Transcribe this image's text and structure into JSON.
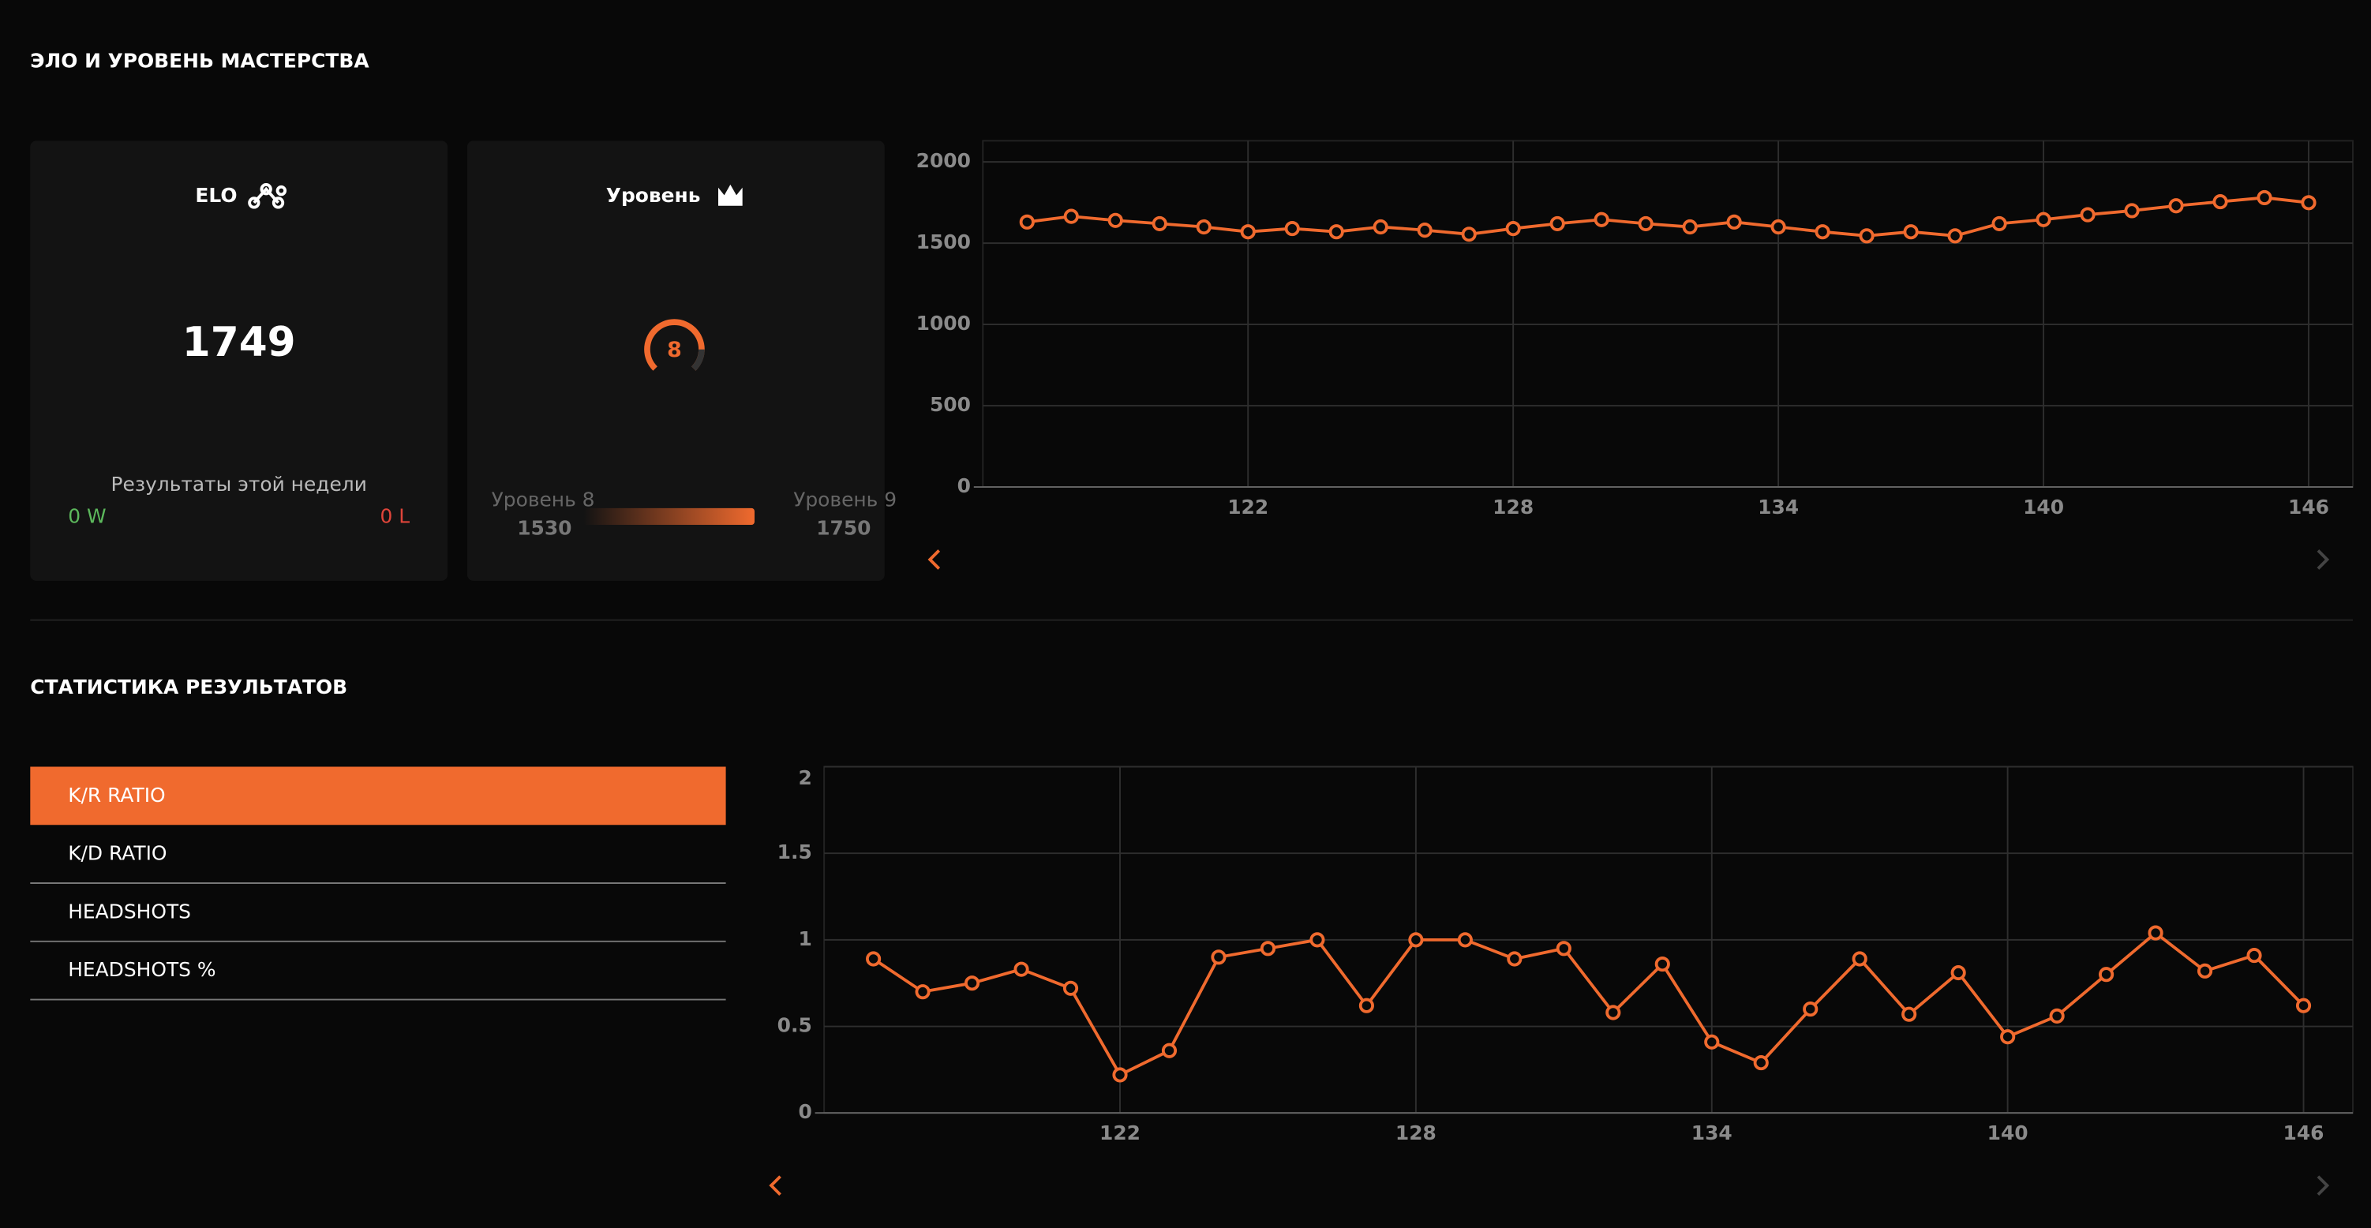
{
  "sections": [
    {
      "title": "ЭЛО И УРОВЕНЬ МАСТЕРСТВА"
    },
    {
      "title": "СТАТИСТИКА РЕЗУЛЬТАТОВ"
    }
  ],
  "elo_card": {
    "title": "ELO",
    "value": 1749,
    "caption": "Результаты этой недели",
    "wins": "0 W",
    "losses": "0 L"
  },
  "level_card": {
    "title": "Уровень",
    "level": 8,
    "from_label": "Уровень 8",
    "from_value": 1530,
    "to_label": "Уровень 9",
    "to_value": 1750
  },
  "tabs": [
    "K/R RATIO",
    "K/D RATIO",
    "HEADSHOTS",
    "HEADSHOTS %"
  ],
  "active_tab": 0,
  "chart_data": [
    {
      "type": "line",
      "color": "#f06a2e",
      "grid": true,
      "x": [
        117,
        118,
        119,
        120,
        121,
        122,
        123,
        124,
        125,
        126,
        127,
        128,
        129,
        130,
        131,
        132,
        133,
        134,
        135,
        136,
        137,
        138,
        139,
        140,
        141,
        142,
        143,
        144,
        145,
        146
      ],
      "values": [
        1630,
        1665,
        1640,
        1620,
        1600,
        1570,
        1590,
        1570,
        1600,
        1580,
        1555,
        1590,
        1620,
        1645,
        1620,
        1600,
        1630,
        1600,
        1570,
        1545,
        1570,
        1545,
        1620,
        1645,
        1675,
        1700,
        1730,
        1755,
        1780,
        1749
      ],
      "xlim": [
        116,
        147
      ],
      "ylim": [
        0,
        2130
      ],
      "xticks": [
        122,
        128,
        134,
        140,
        146
      ],
      "yticks": [
        0,
        500,
        1000,
        1500,
        2000
      ]
    },
    {
      "type": "line",
      "color": "#f06a2e",
      "grid": true,
      "x": [
        117,
        118,
        119,
        120,
        121,
        122,
        123,
        124,
        125,
        126,
        127,
        128,
        129,
        130,
        131,
        132,
        133,
        134,
        135,
        136,
        137,
        138,
        139,
        140,
        141,
        142,
        143,
        144,
        145,
        146
      ],
      "values": [
        0.89,
        0.7,
        0.75,
        0.83,
        0.72,
        0.22,
        0.36,
        0.9,
        0.95,
        1,
        0.62,
        1,
        1,
        0.89,
        0.95,
        0.58,
        0.86,
        0.41,
        0.29,
        0.6,
        0.89,
        0.57,
        0.81,
        0.44,
        0.56,
        0.8,
        1.04,
        0.82,
        0.91,
        0.62
      ],
      "xlim": [
        116,
        147
      ],
      "ylim": [
        0,
        2
      ],
      "xticks": [
        122,
        128,
        134,
        140,
        146
      ],
      "yticks": [
        0,
        0.5,
        1,
        1.5,
        2
      ]
    }
  ]
}
